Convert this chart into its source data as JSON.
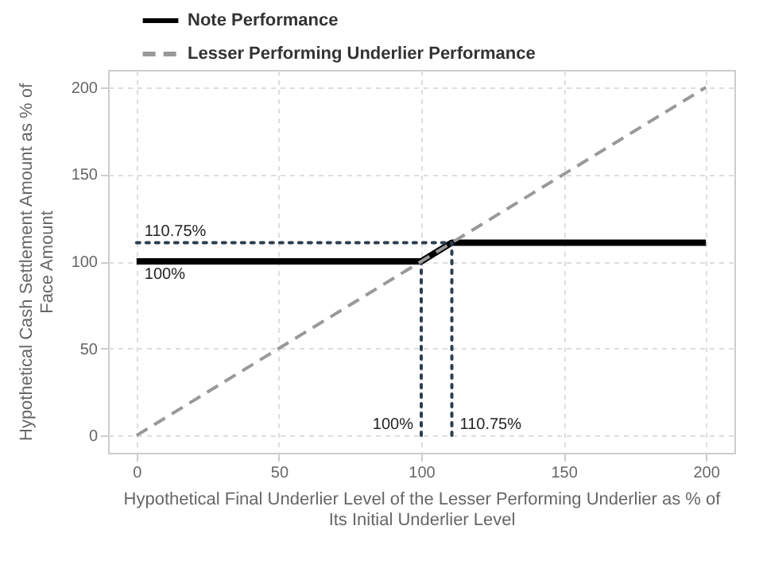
{
  "chart_data": {
    "type": "line",
    "xlabel": "Hypothetical Final Underlier Level of the Lesser Performing Underlier as % of Its Initial Underlier Level",
    "ylabel": "Hypothetical Cash Settlement Amount as % of Face Amount",
    "xlim": [
      -10,
      210
    ],
    "xticks": [
      0,
      50,
      100,
      150,
      200
    ],
    "ylim": [
      -10,
      210
    ],
    "yticks": [
      0,
      50,
      100,
      150,
      200
    ],
    "grid": true,
    "legend": "top left",
    "marker": "none",
    "series": [
      {
        "name": "Note Performance",
        "color": "#000000",
        "line_style": "solid",
        "x": [
          0,
          100,
          110.75,
          200
        ],
        "values": [
          100,
          100,
          110.75,
          110.75
        ]
      },
      {
        "name": "Lesser Performing Underlier Performance",
        "color": "#999999",
        "line_style": "dashed",
        "x": [
          0,
          200
        ],
        "values": [
          0,
          200
        ]
      },
      {
        "color": "#2c3e50",
        "line_style": "dotted",
        "x": [
          0,
          110.75
        ],
        "values": [
          110.75,
          110.75
        ]
      },
      {
        "color": "#2c3e50",
        "line_style": "dotted",
        "x": [
          100,
          100
        ],
        "values": [
          0,
          100
        ]
      },
      {
        "color": "#2c3e50",
        "line_style": "dotted",
        "x": [
          110.75,
          110.75
        ],
        "values": [
          0,
          110.75
        ]
      }
    ],
    "annotations": [
      {
        "text": "110.75%",
        "x": 0,
        "y": 110.75
      },
      {
        "text": "100%",
        "x": 0,
        "y": 100
      },
      {
        "text": "110.75%",
        "x": 110.75,
        "y": 0
      },
      {
        "text": "100%",
        "x": 100,
        "y": 0
      }
    ]
  }
}
